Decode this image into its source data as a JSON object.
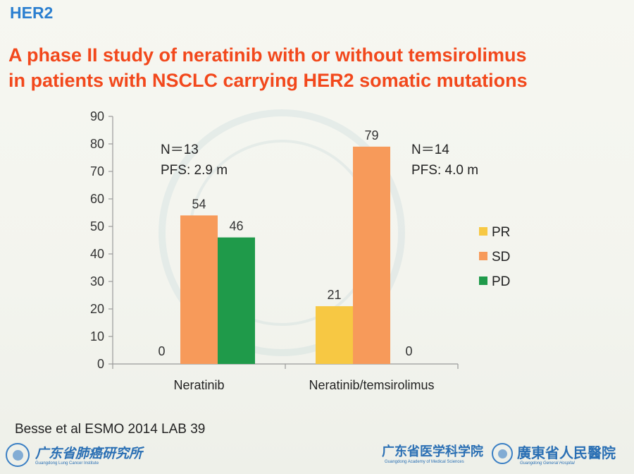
{
  "section": "HER2",
  "title_line1": "A phase II study of neratinib with or without temsirolimus",
  "title_line2": "in patients with NSCLC carrying HER2 somatic mutations",
  "chart_data": {
    "type": "bar",
    "categories": [
      "Neratinib",
      "Neratinib/temsirolimus"
    ],
    "series": [
      {
        "name": "PR",
        "color": "#f7c843",
        "values": [
          0,
          21
        ]
      },
      {
        "name": "SD",
        "color": "#f79a5a",
        "values": [
          54,
          79
        ]
      },
      {
        "name": "PD",
        "color": "#1f9a4a",
        "values": [
          46,
          0
        ]
      }
    ],
    "ylim": [
      0,
      90
    ],
    "yticks": [
      0,
      10,
      20,
      30,
      40,
      50,
      60,
      70,
      80,
      90
    ],
    "legend_position": "right",
    "grid": false,
    "annotations": [
      {
        "group": 0,
        "line1": "N＝13",
        "line2": "PFS: 2.9 m"
      },
      {
        "group": 1,
        "line1": "N＝14",
        "line2": "PFS: 4.0 m"
      }
    ]
  },
  "citation": "Besse et al ESMO 2014 LAB 39",
  "logos": {
    "left_cn": "广东省肺癌研究所",
    "left_en": "Guangdong Lung Cancer Institute",
    "mid_cn": "广东省医学科学院",
    "mid_en": "Guangdong Academy of Medical Sciences",
    "right_cn": "廣東省人民醫院",
    "right_en": "Guangdong General Hospital"
  }
}
